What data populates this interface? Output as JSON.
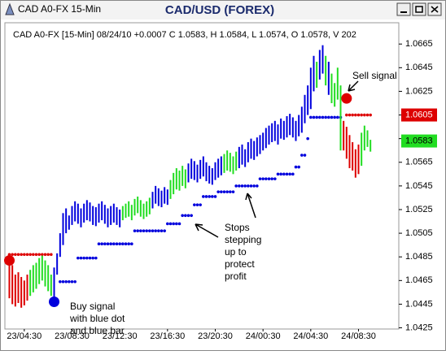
{
  "window_title": "CAD A0-FX 15-Min",
  "chart_data": {
    "type": "ohlc",
    "title": "CAD/USD (FOREX)",
    "subtitle": "CAD A0-FX [15-Min] 08/24/10 +0.0007 C 1.0583, H 1.0584, L 1.0574, O 1.0578, V 202",
    "ylim": [
      1.0424,
      1.0683
    ],
    "yticks": [
      1.0425,
      1.0445,
      1.0465,
      1.0485,
      1.0505,
      1.0525,
      1.0545,
      1.0565,
      1.0585,
      1.0605,
      1.0625,
      1.0645,
      1.0665
    ],
    "xlim": [
      -1.5,
      130.5
    ],
    "xticks": [
      {
        "value": 5,
        "label": "23/04:30"
      },
      {
        "value": 21,
        "label": "23/08:30"
      },
      {
        "value": 37,
        "label": "23/12:30"
      },
      {
        "value": 53,
        "label": "23/16:30"
      },
      {
        "value": 69,
        "label": "23/20:30"
      },
      {
        "value": 85,
        "label": "24/00:30"
      },
      {
        "value": 101,
        "label": "24/04:30"
      },
      {
        "value": 117,
        "label": "24/08:30"
      }
    ],
    "bars": {
      "high": [
        1.0484,
        1.0478,
        1.047,
        1.0472,
        1.0468,
        1.0465,
        1.047,
        1.0474,
        1.0478,
        1.048,
        1.0484,
        1.0486,
        1.0482,
        1.0478,
        1.047,
        1.0476,
        1.0488,
        1.0505,
        1.0522,
        1.0526,
        1.052,
        1.0528,
        1.0532,
        1.053,
        1.0526,
        1.053,
        1.0533,
        1.0531,
        1.0528,
        1.0527,
        1.053,
        1.0532,
        1.0529,
        1.0526,
        1.0528,
        1.053,
        1.0527,
        1.0525,
        1.0528,
        1.053,
        1.0532,
        1.0529,
        1.0534,
        1.0536,
        1.0533,
        1.053,
        1.0532,
        1.0535,
        1.054,
        1.0545,
        1.0543,
        1.0541,
        1.0544,
        1.0542,
        1.055,
        1.0556,
        1.056,
        1.0558,
        1.0562,
        1.0559,
        1.0564,
        1.0568,
        1.0566,
        1.0563,
        1.0567,
        1.057,
        1.0565,
        1.0562,
        1.056,
        1.0565,
        1.0568,
        1.057,
        1.0572,
        1.0575,
        1.0573,
        1.057,
        1.0574,
        1.0578,
        1.058,
        1.0576,
        1.0582,
        1.0585,
        1.0583,
        1.0586,
        1.0588,
        1.059,
        1.0594,
        1.0596,
        1.0598,
        1.06,
        1.0597,
        1.0602,
        1.06,
        1.0604,
        1.0606,
        1.0603,
        1.06,
        1.0605,
        1.0612,
        1.0622,
        1.063,
        1.0645,
        1.0655,
        1.065,
        1.066,
        1.0664,
        1.0655,
        1.065,
        1.064,
        1.0632,
        1.0645,
        1.063,
        1.06,
        1.0595,
        1.0588,
        1.0582,
        1.0576,
        1.058,
        1.059,
        1.0596,
        1.0592,
        1.0584
      ],
      "low": [
        1.045,
        1.0445,
        1.0443,
        1.0446,
        1.0442,
        1.0444,
        1.0448,
        1.0452,
        1.0455,
        1.0458,
        1.0462,
        1.0465,
        1.046,
        1.0456,
        1.0452,
        1.045,
        1.047,
        1.0485,
        1.0495,
        1.0505,
        1.0508,
        1.0512,
        1.0515,
        1.0513,
        1.051,
        1.0514,
        1.0516,
        1.0515,
        1.0512,
        1.0511,
        1.0514,
        1.0516,
        1.0513,
        1.051,
        1.0512,
        1.0514,
        1.0512,
        1.051,
        1.0516,
        1.0518,
        1.0519,
        1.0516,
        1.052,
        1.0522,
        1.0519,
        1.0517,
        1.0519,
        1.0521,
        1.0526,
        1.053,
        1.0528,
        1.0527,
        1.053,
        1.0529,
        1.0534,
        1.0538,
        1.0542,
        1.0541,
        1.0545,
        1.0543,
        1.0548,
        1.0551,
        1.055,
        1.0548,
        1.0551,
        1.0553,
        1.0549,
        1.0547,
        1.0546,
        1.055,
        1.0552,
        1.0554,
        1.0556,
        1.0558,
        1.0557,
        1.0555,
        1.0558,
        1.056,
        1.0563,
        1.0561,
        1.0565,
        1.0568,
        1.0567,
        1.057,
        1.0572,
        1.0575,
        1.0577,
        1.058,
        1.0582,
        1.0583,
        1.058,
        1.0585,
        1.0584,
        1.0586,
        1.0588,
        1.0586,
        1.0583,
        1.0587,
        1.059,
        1.0598,
        1.0605,
        1.061,
        1.0625,
        1.0628,
        1.0635,
        1.064,
        1.063,
        1.0622,
        1.0615,
        1.0612,
        1.0618,
        1.0575,
        1.0575,
        1.0568,
        1.056,
        1.0558,
        1.0552,
        1.0555,
        1.0562,
        1.0575,
        1.0578,
        1.0574
      ],
      "colors": [
        "#dd0000",
        "#dd0000",
        "#dd0000",
        "#dd0000",
        "#dd0000",
        "#dd0000",
        "#dd0000",
        "#22dd22",
        "#22dd22",
        "#22dd22",
        "#22dd22",
        "#22dd22",
        "#22dd22",
        "#22dd22",
        "#22dd22",
        "#0000dd",
        "#0000dd",
        "#0000dd",
        "#0000dd",
        "#0000dd",
        "#0000dd",
        "#0000dd",
        "#0000dd",
        "#0000dd",
        "#0000dd",
        "#0000dd",
        "#0000dd",
        "#0000dd",
        "#0000dd",
        "#0000dd",
        "#0000dd",
        "#0000dd",
        "#0000dd",
        "#0000dd",
        "#0000dd",
        "#0000dd",
        "#0000dd",
        "#0000dd",
        "#22dd22",
        "#22dd22",
        "#22dd22",
        "#22dd22",
        "#22dd22",
        "#22dd22",
        "#22dd22",
        "#22dd22",
        "#22dd22",
        "#22dd22",
        "#0000dd",
        "#0000dd",
        "#0000dd",
        "#0000dd",
        "#0000dd",
        "#0000dd",
        "#22dd22",
        "#22dd22",
        "#22dd22",
        "#22dd22",
        "#22dd22",
        "#22dd22",
        "#0000dd",
        "#0000dd",
        "#0000dd",
        "#0000dd",
        "#0000dd",
        "#0000dd",
        "#0000dd",
        "#0000dd",
        "#0000dd",
        "#0000dd",
        "#0000dd",
        "#0000dd",
        "#22dd22",
        "#22dd22",
        "#22dd22",
        "#22dd22",
        "#22dd22",
        "#0000dd",
        "#0000dd",
        "#0000dd",
        "#0000dd",
        "#0000dd",
        "#0000dd",
        "#0000dd",
        "#0000dd",
        "#0000dd",
        "#0000dd",
        "#0000dd",
        "#0000dd",
        "#0000dd",
        "#0000dd",
        "#0000dd",
        "#0000dd",
        "#0000dd",
        "#0000dd",
        "#0000dd",
        "#0000dd",
        "#0000dd",
        "#0000dd",
        "#0000dd",
        "#0000dd",
        "#0000dd",
        "#0000dd",
        "#22dd22",
        "#0000dd",
        "#0000dd",
        "#22dd22",
        "#0000dd",
        "#22dd22",
        "#22dd22",
        "#22dd22",
        "#22dd22",
        "#dd0000",
        "#dd0000",
        "#dd0000",
        "#dd0000",
        "#dd0000",
        "#dd0000",
        "#22dd22",
        "#22dd22",
        "#22dd22",
        "#22dd22"
      ]
    },
    "dots": [
      {
        "color": "#dd0000",
        "values": [
          1.0487,
          1.0487,
          1.0487,
          1.0487,
          1.0487,
          1.0487,
          1.0487,
          1.0487,
          1.0487,
          1.0487,
          1.0487,
          1.0487,
          1.0487,
          1.0487,
          1.0487,
          null,
          null,
          null,
          null,
          null,
          null,
          null,
          null,
          null,
          null,
          null,
          null,
          null,
          null,
          null,
          null,
          null,
          null,
          null,
          null,
          null,
          null,
          null,
          null,
          null,
          null,
          null,
          null,
          null,
          null,
          null,
          null,
          null,
          null,
          null,
          null,
          null,
          null,
          null,
          null,
          null,
          null,
          null,
          null,
          null,
          null,
          null,
          null,
          null,
          null,
          null,
          null,
          null,
          null,
          null,
          null,
          null,
          null,
          null,
          null,
          null,
          null,
          null,
          null,
          null,
          null,
          null,
          null,
          null,
          null,
          null,
          null,
          null,
          null,
          null,
          null,
          null,
          null,
          null,
          null,
          null,
          null,
          null,
          null,
          null,
          null,
          null,
          null,
          null,
          null,
          null,
          null,
          null,
          null,
          null,
          null,
          null,
          null,
          1.0605,
          1.0605,
          1.0605,
          1.0605,
          1.0605,
          1.0605,
          1.0605,
          1.0605,
          1.0605
        ]
      },
      {
        "color": "#0000dd",
        "values": [
          null,
          null,
          null,
          null,
          null,
          null,
          null,
          null,
          null,
          null,
          null,
          null,
          null,
          null,
          null,
          null,
          null,
          1.0464,
          1.0464,
          1.0464,
          1.0464,
          1.0464,
          1.0464,
          1.0484,
          1.0484,
          1.0484,
          1.0484,
          1.0484,
          1.0484,
          1.0484,
          1.0496,
          1.0496,
          1.0496,
          1.0496,
          1.0496,
          1.0496,
          1.0496,
          1.0496,
          1.0496,
          1.0496,
          1.0496,
          1.0496,
          1.0507,
          1.0507,
          1.0507,
          1.0507,
          1.0507,
          1.0507,
          1.0507,
          1.0507,
          1.0507,
          1.0507,
          1.0507,
          1.0513,
          1.0513,
          1.0513,
          1.0513,
          1.0513,
          1.052,
          1.052,
          1.052,
          1.052,
          1.0529,
          1.0529,
          1.0529,
          1.0536,
          1.0536,
          1.0536,
          1.0536,
          1.0536,
          1.054,
          1.054,
          1.054,
          1.054,
          1.054,
          1.054,
          1.0545,
          1.0545,
          1.0545,
          1.0545,
          1.0545,
          1.0545,
          1.0545,
          1.0545,
          1.0551,
          1.0551,
          1.0551,
          1.0551,
          1.0551,
          1.0551,
          1.0555,
          1.0555,
          1.0555,
          1.0555,
          1.0555,
          1.0555,
          1.0561,
          1.0561,
          1.0571,
          1.0571,
          1.0585,
          1.0603,
          1.0603,
          1.0603,
          1.0603,
          1.0603,
          1.0603,
          1.0603,
          1.0603,
          1.0603,
          1.0603,
          1.0603,
          null,
          null,
          null,
          null,
          null,
          null,
          null,
          null,
          null,
          null
        ]
      }
    ],
    "signals": [
      {
        "x": 0,
        "value": 1.0482,
        "color": "#dd0000"
      },
      {
        "x": 15,
        "value": 1.0447,
        "color": "#0000dd"
      },
      {
        "x": 113,
        "value": 1.0619,
        "color": "#dd0000"
      }
    ],
    "price_tags": [
      {
        "value": 1.0605,
        "color": "#dd0000"
      },
      {
        "value": 1.0583,
        "color": "#22dd22"
      }
    ],
    "annotations": [
      {
        "lines": [
          "Buy signal",
          "with blue dot",
          "and blue bar"
        ]
      },
      {
        "lines": [
          "Stops",
          "stepping",
          "up to",
          "protect",
          "profit"
        ]
      },
      {
        "lines": [
          "Sell signal"
        ]
      }
    ]
  }
}
